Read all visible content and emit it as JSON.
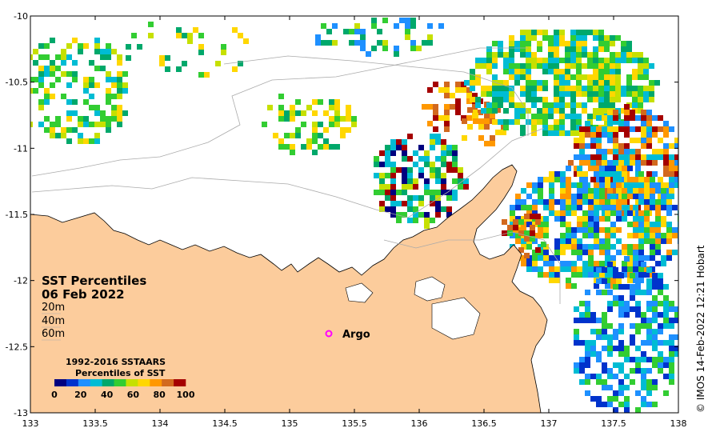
{
  "title_line1": "SST Percentiles",
  "title_line2": "06 Feb 2022",
  "depth_labels": [
    "20m",
    "40m",
    "60m"
  ],
  "legend": {
    "line1": "1992-2016 SSTAARS",
    "line2": "Percentiles of SST",
    "tick_labels": [
      "0",
      "20",
      "40",
      "60",
      "80",
      "100"
    ],
    "colors": [
      "#00007f",
      "#0033cc",
      "#1e90ff",
      "#00bcd4",
      "#00a86b",
      "#32cd32",
      "#c6e000",
      "#ffd700",
      "#ff9800",
      "#d2691e",
      "#a50000"
    ]
  },
  "argo": {
    "label": "Argo",
    "marker_color": "#ff00ff"
  },
  "credit": "© IMOS 14-Feb-2022 12:21 Hobart",
  "colors": {
    "land": "#fccc9c",
    "ocean": "#ffffff",
    "coast": "#000000",
    "isobath": "#aaaaaa"
  },
  "x_ticks": [
    "133",
    "133.5",
    "134",
    "134.5",
    "135",
    "135.5",
    "136",
    "136.5",
    "137",
    "137.5",
    "138"
  ],
  "y_ticks": [
    "-10",
    "-10.5",
    "-11",
    "-11.5",
    "-12",
    "-12.5",
    "-13"
  ],
  "axes": {
    "xlim": [
      133,
      138
    ],
    "ylim": [
      -13,
      -10
    ]
  }
}
